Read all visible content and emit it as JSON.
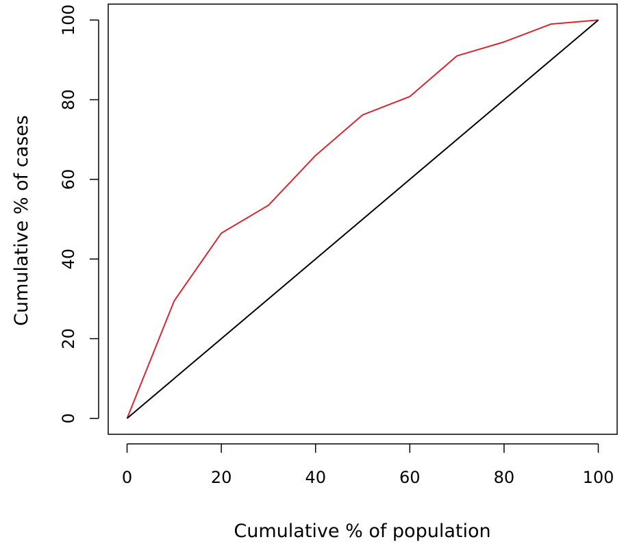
{
  "chart_data": {
    "type": "line",
    "title": "",
    "xlabel": "Cumulative % of population",
    "ylabel": "Cumulative % of cases",
    "xlim": [
      -4,
      104
    ],
    "ylim": [
      -4,
      104
    ],
    "xticks": [
      0,
      20,
      40,
      60,
      80,
      100
    ],
    "yticks": [
      0,
      20,
      40,
      60,
      80,
      100
    ],
    "grid": false,
    "series": [
      {
        "color": "#d7262f",
        "x": [
          0,
          10,
          20,
          30,
          40,
          50,
          60,
          70,
          80,
          90,
          100
        ],
        "y": [
          0,
          29.5,
          46.5,
          53.5,
          66,
          76.2,
          80.8,
          91,
          94.5,
          99,
          100
        ]
      },
      {
        "color": "#000000",
        "x": [
          0,
          100
        ],
        "y": [
          0,
          100
        ]
      }
    ]
  }
}
